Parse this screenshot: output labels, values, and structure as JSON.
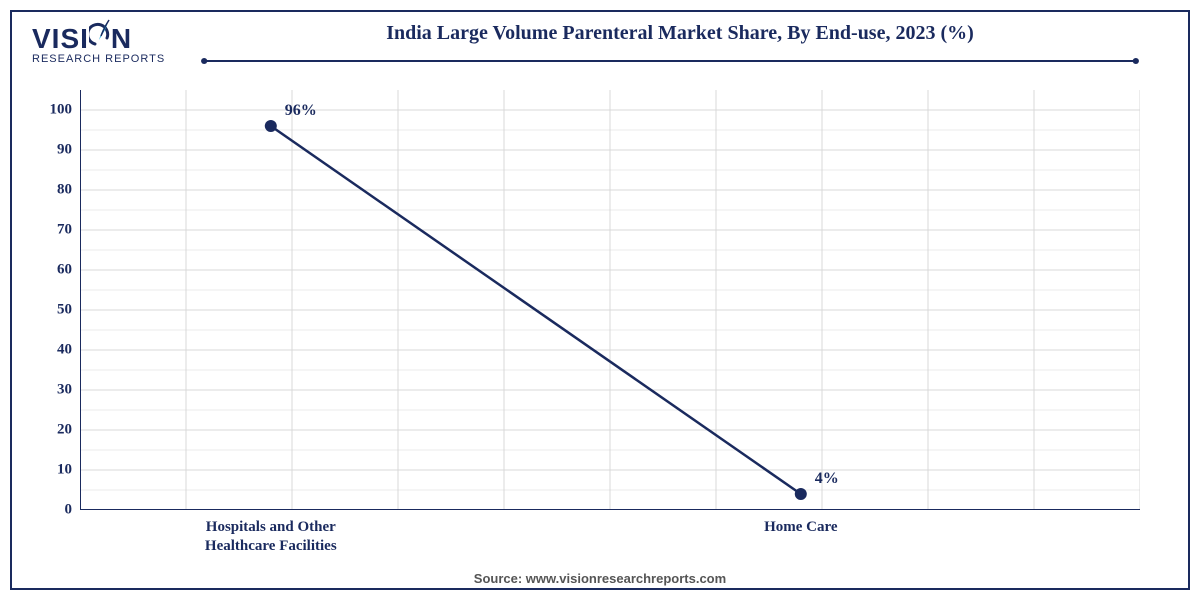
{
  "logo": {
    "text_main": "VISI",
    "text_main2": "N",
    "text_sub": "RESEARCH REPORTS",
    "color_primary": "#1a2a5e",
    "color_accent": "#2aa8d8"
  },
  "title": {
    "text": "India Large Volume Parenteral Market Share, By End-use, 2023 (%)",
    "fontsize": 20,
    "color": "#1a2a5e"
  },
  "chart": {
    "type": "line",
    "background_color": "#ffffff",
    "grid_color": "#d8d8d8",
    "axis_color": "#1a2a5e",
    "line_color": "#1a2a5e",
    "line_width": 2.5,
    "marker_color": "#1a2a5e",
    "marker_radius": 6,
    "ylim": [
      0,
      105
    ],
    "yticks": [
      0,
      10,
      20,
      30,
      40,
      50,
      60,
      70,
      80,
      90,
      100
    ],
    "x_categories": [
      "Hospitals and Other\nHealthcare Facilities",
      "Home Care"
    ],
    "values": [
      96,
      4
    ],
    "value_labels": [
      "96%",
      "4%"
    ],
    "label_fontsize": 15,
    "label_color": "#1a2a5e",
    "x_minor_count": 10,
    "y_minor_count": 2
  },
  "source": {
    "label": "Source: www.visionresearchreports.com",
    "fontsize": 13,
    "color": "#555555"
  }
}
